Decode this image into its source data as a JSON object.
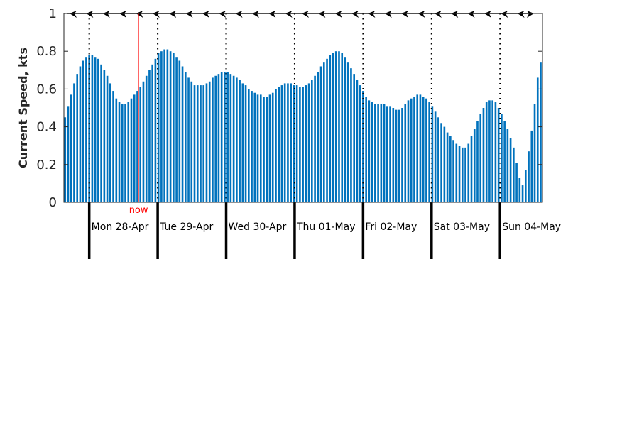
{
  "chart_data": {
    "type": "bar",
    "ylabel": "Current Speed, kts",
    "ylim": [
      0,
      1
    ],
    "yticks": [
      "0",
      "0.2",
      "0.4",
      "0.6",
      "0.8",
      "1"
    ],
    "grid": false,
    "bar_color": "#0072bd",
    "now_color": "#ff0000",
    "now_label": "now",
    "now_day_offset": 0.72,
    "days": [
      "Mon 28-Apr",
      "Tue 29-Apr",
      "Wed 30-Apr",
      "Thu 01-May",
      "Fri 02-May",
      "Sat 03-May",
      "Sun 04-May"
    ],
    "x_start_day_offset": -0.37,
    "x_end_day_offset": 6.62,
    "bar_interval_hours": 1,
    "values": [
      0.45,
      0.51,
      0.57,
      0.63,
      0.68,
      0.72,
      0.75,
      0.77,
      0.78,
      0.78,
      0.77,
      0.76,
      0.73,
      0.7,
      0.67,
      0.63,
      0.59,
      0.55,
      0.53,
      0.52,
      0.52,
      0.53,
      0.55,
      0.57,
      0.59,
      0.61,
      0.64,
      0.67,
      0.7,
      0.73,
      0.76,
      0.79,
      0.8,
      0.81,
      0.81,
      0.8,
      0.79,
      0.77,
      0.75,
      0.72,
      0.69,
      0.66,
      0.64,
      0.62,
      0.62,
      0.62,
      0.62,
      0.63,
      0.64,
      0.66,
      0.67,
      0.68,
      0.69,
      0.69,
      0.69,
      0.68,
      0.67,
      0.66,
      0.65,
      0.63,
      0.62,
      0.6,
      0.59,
      0.58,
      0.57,
      0.57,
      0.56,
      0.56,
      0.57,
      0.58,
      0.6,
      0.61,
      0.62,
      0.63,
      0.63,
      0.63,
      0.62,
      0.62,
      0.61,
      0.61,
      0.62,
      0.63,
      0.65,
      0.67,
      0.69,
      0.72,
      0.74,
      0.76,
      0.78,
      0.79,
      0.8,
      0.8,
      0.79,
      0.77,
      0.74,
      0.71,
      0.68,
      0.65,
      0.62,
      0.59,
      0.56,
      0.54,
      0.53,
      0.52,
      0.52,
      0.52,
      0.52,
      0.51,
      0.51,
      0.5,
      0.49,
      0.49,
      0.5,
      0.52,
      0.54,
      0.55,
      0.56,
      0.57,
      0.57,
      0.56,
      0.55,
      0.53,
      0.51,
      0.48,
      0.45,
      0.42,
      0.4,
      0.37,
      0.35,
      0.33,
      0.31,
      0.3,
      0.29,
      0.29,
      0.31,
      0.35,
      0.39,
      0.43,
      0.47,
      0.5,
      0.53,
      0.54,
      0.54,
      0.53,
      0.5,
      0.47,
      0.43,
      0.39,
      0.34,
      0.29,
      0.21,
      0.13,
      0.09,
      0.17,
      0.27,
      0.38,
      0.52,
      0.66,
      0.74
    ],
    "direction_arrows_count": 29
  }
}
